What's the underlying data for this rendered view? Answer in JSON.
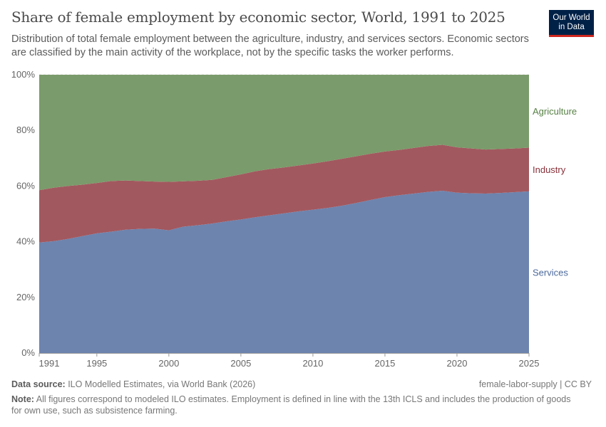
{
  "header": {
    "title": "Share of female employment by economic sector, World, 1991 to 2025",
    "subtitle": "Distribution of total female employment between the agriculture, industry, and services sectors. Economic sectors are classified by the main activity of the workplace, not by the specific tasks the worker performs.",
    "logo_text": "Our World in Data"
  },
  "footer": {
    "source_label": "Data source:",
    "source_text": " ILO Modelled Estimates, via World Bank (2026)",
    "license": "female-labor-supply | CC BY",
    "note_label": "Note:",
    "note_text": " All figures correspond to modeled ILO estimates. Employment is defined in line with the 13th ICLS and includes the production of goods for own use, such as subsistence farming."
  },
  "chart_data": {
    "type": "area",
    "stacked": true,
    "x": [
      1991,
      1992,
      1993,
      1994,
      1995,
      1996,
      1997,
      1998,
      1999,
      2000,
      2001,
      2002,
      2003,
      2004,
      2005,
      2006,
      2007,
      2008,
      2009,
      2010,
      2011,
      2012,
      2013,
      2014,
      2015,
      2016,
      2017,
      2018,
      2019,
      2020,
      2021,
      2022,
      2023,
      2024,
      2025
    ],
    "xticks": [
      "1991",
      "1995",
      "2000",
      "2005",
      "2010",
      "2015",
      "2020",
      "2025"
    ],
    "xtick_values": [
      1991,
      1995,
      2000,
      2005,
      2010,
      2015,
      2020,
      2025
    ],
    "yticks": [
      "0%",
      "20%",
      "40%",
      "60%",
      "80%",
      "100%"
    ],
    "ytick_values": [
      0,
      20,
      40,
      60,
      80,
      100
    ],
    "ylim": [
      0,
      100
    ],
    "grid": "horizontal dashed",
    "legend": "right, inline labels",
    "series": [
      {
        "name": "Services",
        "color": "#6d84ae",
        "label_color": "#4c6a9c",
        "values": [
          39.7,
          40.2,
          41.0,
          42.0,
          43.0,
          43.6,
          44.3,
          44.6,
          44.7,
          44.1,
          45.4,
          45.9,
          46.5,
          47.3,
          48.0,
          48.8,
          49.5,
          50.2,
          50.9,
          51.5,
          52.1,
          52.9,
          53.9,
          55.0,
          56.0,
          56.7,
          57.3,
          57.9,
          58.3,
          57.6,
          57.4,
          57.3,
          57.5,
          57.8,
          58.1
        ]
      },
      {
        "name": "Industry",
        "color": "#a2585f",
        "label_color": "#883039",
        "values": [
          18.8,
          19.2,
          19.0,
          18.5,
          18.1,
          18.2,
          17.7,
          17.2,
          16.9,
          17.4,
          16.3,
          16.0,
          15.7,
          15.9,
          16.2,
          16.5,
          16.6,
          16.5,
          16.5,
          16.6,
          16.8,
          16.9,
          16.8,
          16.6,
          16.4,
          16.3,
          16.4,
          16.5,
          16.5,
          16.3,
          16.1,
          15.8,
          15.8,
          15.7,
          15.7
        ]
      },
      {
        "name": "Agriculture",
        "color": "#7a9b6b",
        "label_color": "#578145",
        "values": [
          41.5,
          40.6,
          40.0,
          39.5,
          38.9,
          38.2,
          38.0,
          38.2,
          38.4,
          38.5,
          38.3,
          38.1,
          37.8,
          36.8,
          35.8,
          34.7,
          33.9,
          33.3,
          32.6,
          31.9,
          31.1,
          30.2,
          29.3,
          28.4,
          27.6,
          27.0,
          26.3,
          25.6,
          25.2,
          26.1,
          26.5,
          26.9,
          26.7,
          26.5,
          26.2
        ]
      }
    ]
  }
}
